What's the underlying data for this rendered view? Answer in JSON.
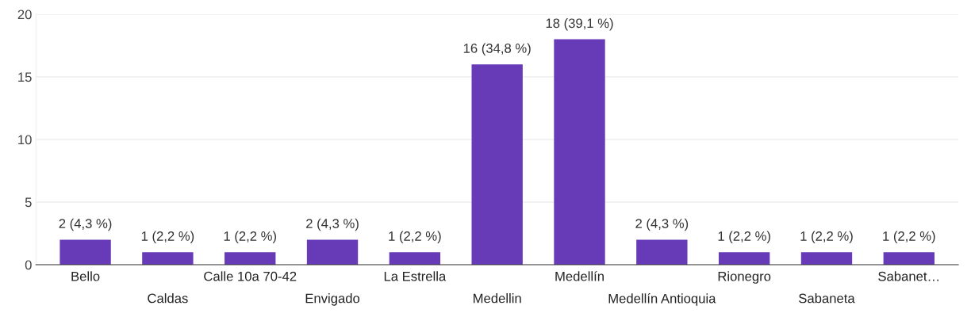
{
  "chart_data": {
    "type": "bar",
    "categories": [
      "Bello",
      "Caldas",
      "Calle 10a 70-42",
      "Envigado",
      "La Estrella",
      "Medellin",
      "Medellín",
      "Medellín Antioquia",
      "Rionegro",
      "Sabaneta",
      "Sabanet…"
    ],
    "values": [
      2,
      1,
      1,
      2,
      1,
      16,
      18,
      2,
      1,
      1,
      1
    ],
    "value_labels": [
      "2 (4,3 %)",
      "1 (2,2 %)",
      "1 (2,2 %)",
      "2 (4,3 %)",
      "1 (2,2 %)",
      "16 (34,8 %)",
      "18 (39,1 %)",
      "2 (4,3 %)",
      "1 (2,2 %)",
      "1 (2,2 %)",
      "1 (2,2 %)"
    ],
    "color": "#673ab7",
    "ylim": [
      0,
      20
    ],
    "yticks": [
      0,
      5,
      10,
      15,
      20
    ],
    "grid": "y",
    "legend": false
  }
}
